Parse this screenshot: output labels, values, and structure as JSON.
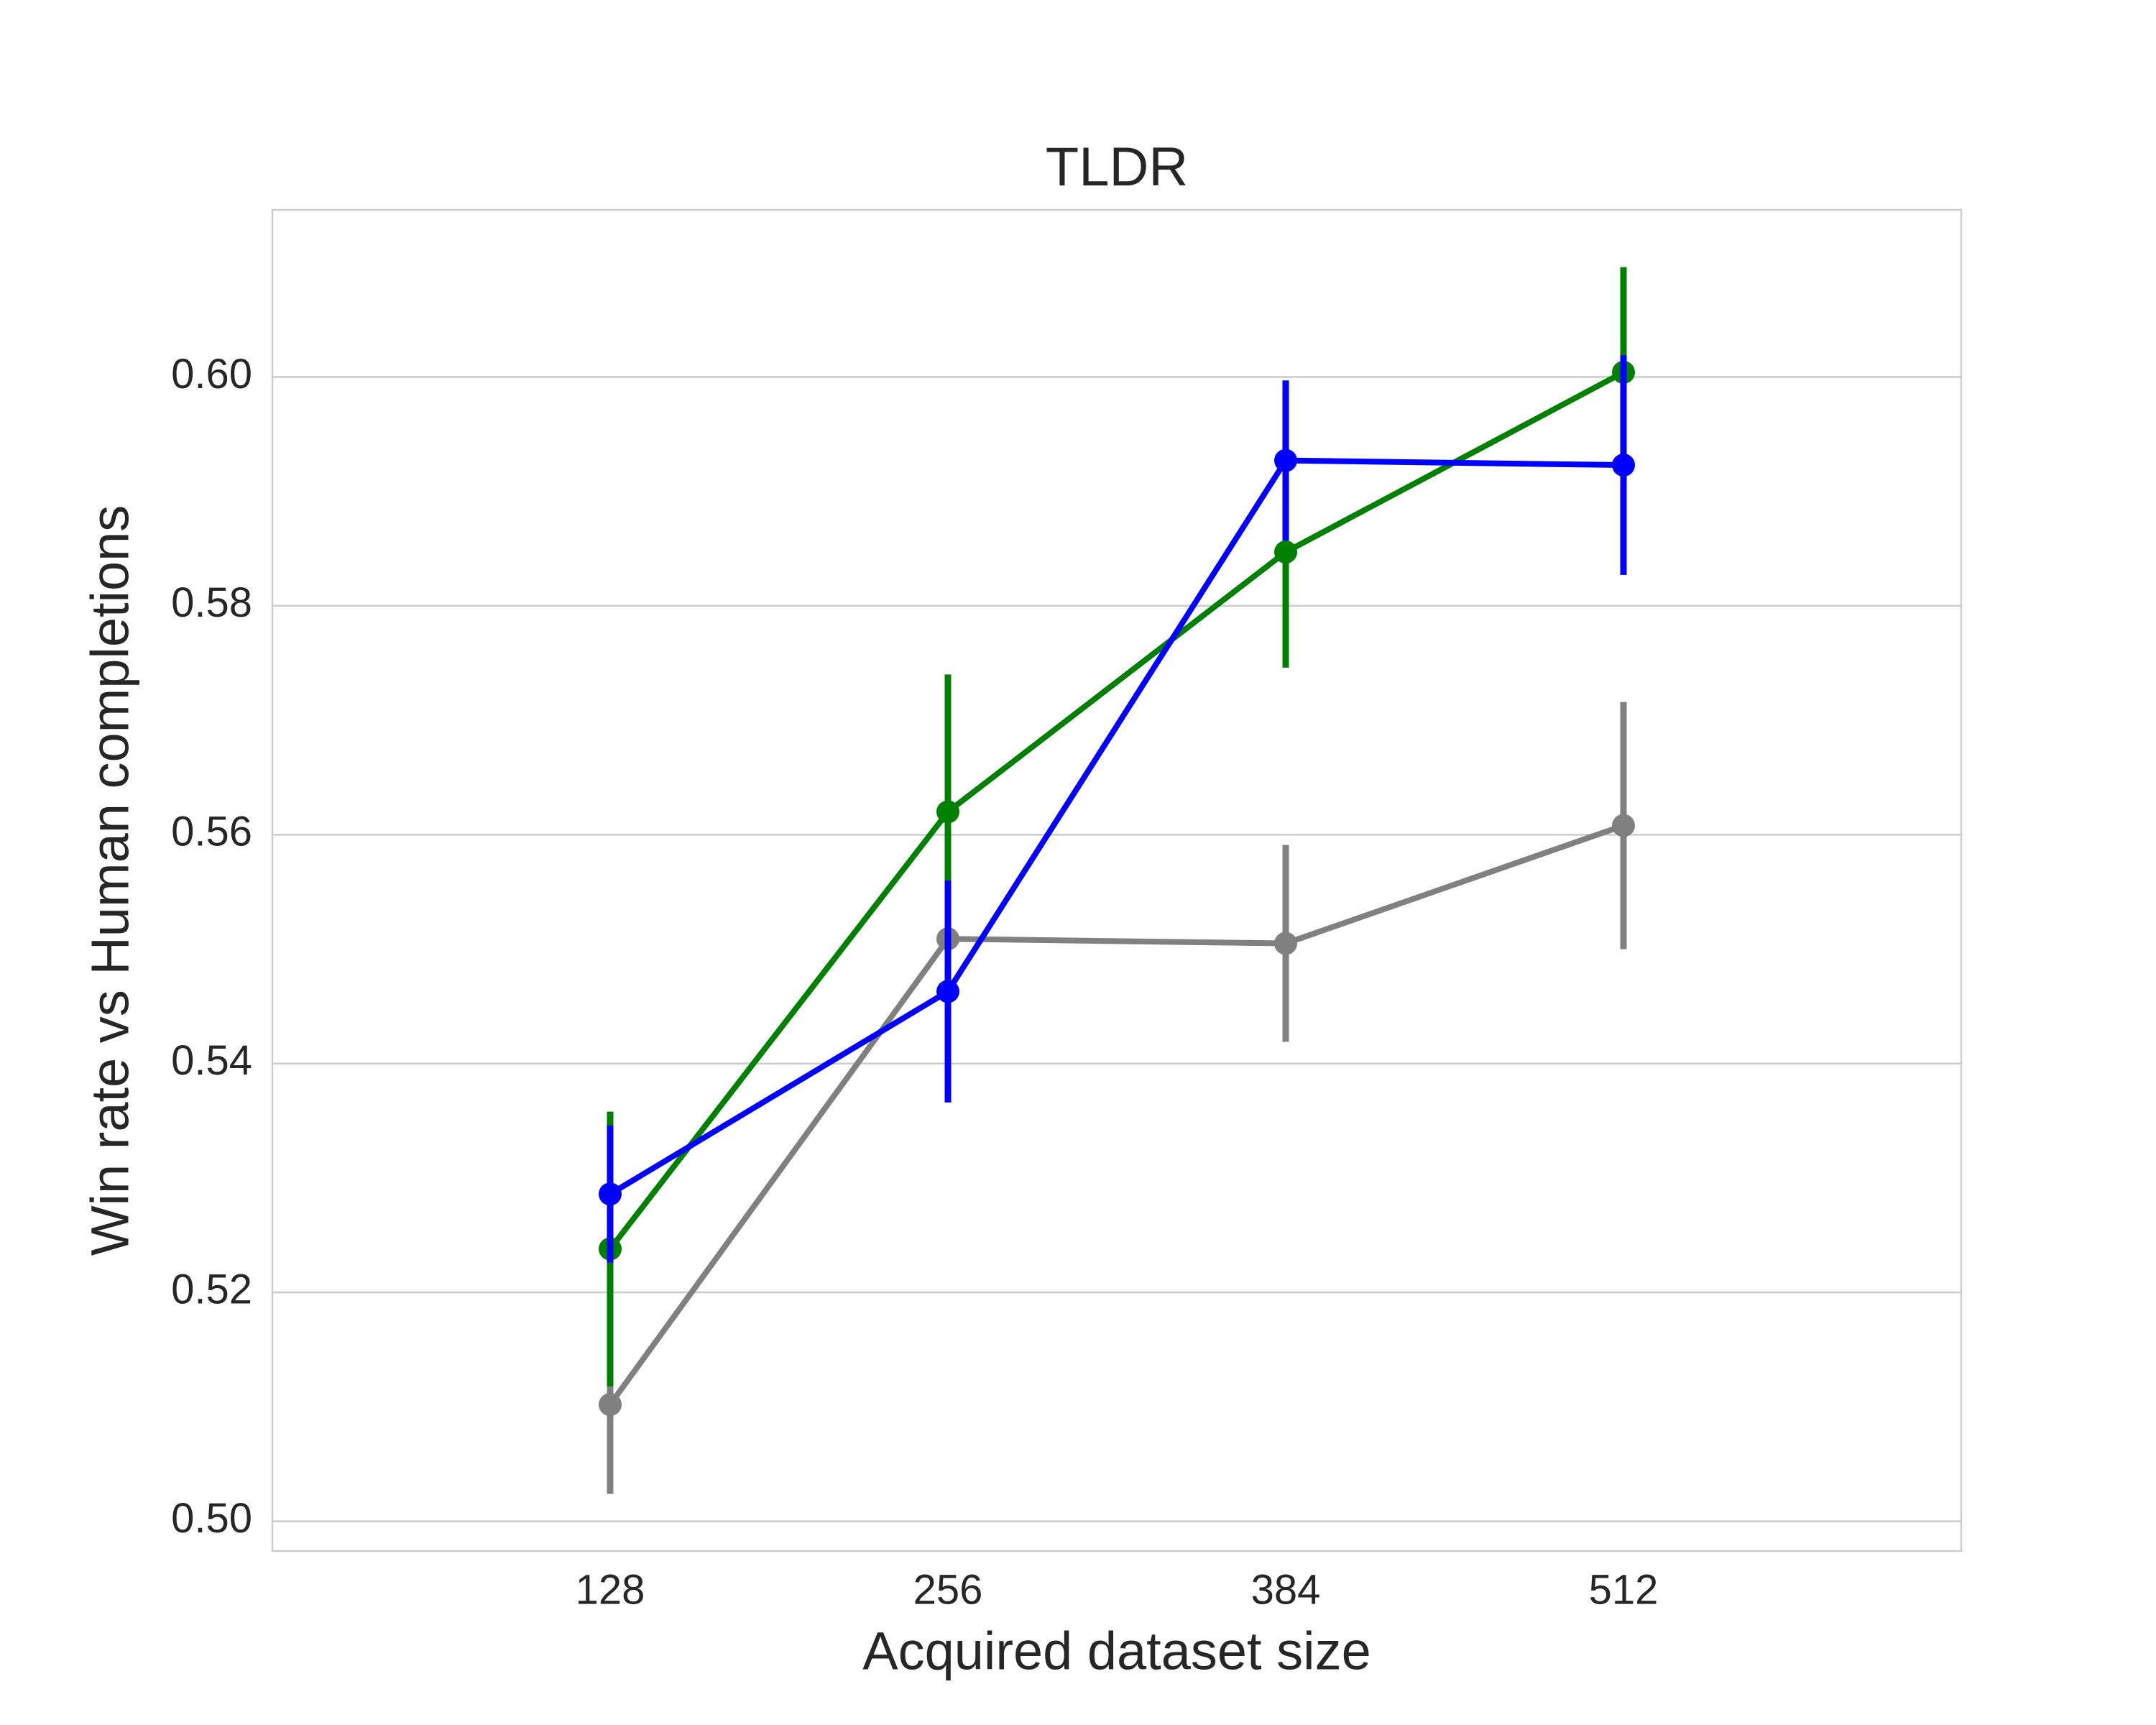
{
  "chart_data": {
    "type": "pointplot",
    "title": "TLDR",
    "x_label": "Acquired dataset size",
    "y_label": "Win rate vs Human completions",
    "categories": [
      "128",
      "256",
      "384",
      "512"
    ],
    "series": [
      {
        "color": "#808080",
        "values": [
          0.5102,
          0.5509,
          0.5505,
          0.5608
        ],
        "errors": [
          0.0078,
          0.009,
          0.0086,
          0.0108
        ]
      },
      {
        "color": "#008000",
        "values": [
          0.5238,
          0.562,
          0.5847,
          0.6004
        ],
        "errors": [
          0.012,
          0.012,
          0.0101,
          0.0092
        ]
      },
      {
        "color": "#0000ff",
        "values": [
          0.5286,
          0.5463,
          0.5927,
          0.5923
        ],
        "errors": [
          0.006,
          0.0097,
          0.007,
          0.0096
        ]
      }
    ],
    "ylim": [
      0.4974,
      0.6146
    ],
    "yticks": [
      {
        "value": 0.5,
        "label": "0.50"
      },
      0.52,
      0.54,
      0.56,
      0.58,
      {
        "value": 0.6,
        "label": "0.60"
      }
    ],
    "grid": true
  }
}
